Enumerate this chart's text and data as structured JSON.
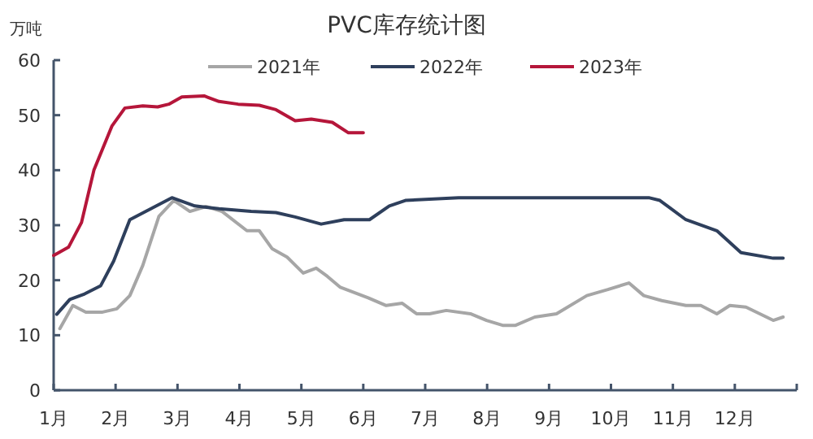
{
  "chart_data": {
    "type": "line",
    "title": "PVC库存统计图",
    "ylabel": "万吨",
    "ylim": [
      0,
      60
    ],
    "yticks": [
      0,
      10,
      20,
      30,
      40,
      50,
      60
    ],
    "xlim": [
      1,
      13
    ],
    "xticks": [
      {
        "value": 1,
        "label": "1月"
      },
      {
        "value": 2,
        "label": "2月"
      },
      {
        "value": 3,
        "label": "3月"
      },
      {
        "value": 4,
        "label": "4月"
      },
      {
        "value": 5,
        "label": "5月"
      },
      {
        "value": 6,
        "label": "6月"
      },
      {
        "value": 7,
        "label": "7月"
      },
      {
        "value": 8,
        "label": "8月"
      },
      {
        "value": 9,
        "label": "9月"
      },
      {
        "value": 10,
        "label": "10月"
      },
      {
        "value": 11,
        "label": "11月"
      },
      {
        "value": 12,
        "label": "12月"
      },
      {
        "value": 13,
        "label": null
      }
    ],
    "legend": "top",
    "grid": false,
    "marker": "none",
    "line_style": "solid",
    "series": [
      {
        "name": "2021年",
        "color": "#a6a6a6",
        "x": [
          1.1,
          1.31,
          1.52,
          1.79,
          2.02,
          2.23,
          2.44,
          2.7,
          2.94,
          3.2,
          3.46,
          3.72,
          4.12,
          4.32,
          4.53,
          4.77,
          5.03,
          5.24,
          5.42,
          5.63,
          6.08,
          6.37,
          6.63,
          6.68,
          6.86,
          7.07,
          7.34,
          7.73,
          7.99,
          8.25,
          8.46,
          8.77,
          9.12,
          9.61,
          9.95,
          10.29,
          10.53,
          10.82,
          11.21,
          11.45,
          11.71,
          11.92,
          12.18,
          12.62,
          12.78
        ],
        "values": [
          11.2,
          15.4,
          14.2,
          14.2,
          14.8,
          17.2,
          22.7,
          31.6,
          34.5,
          32.5,
          33.4,
          32.5,
          29,
          29,
          25.7,
          24.2,
          21.3,
          22.2,
          20.7,
          18.7,
          16.8,
          15.4,
          15.8,
          15.4,
          13.9,
          13.9,
          14.5,
          13.9,
          12.7,
          11.8,
          11.8,
          13.3,
          13.9,
          17.2,
          18.3,
          19.5,
          17.2,
          16.3,
          15.4,
          15.4,
          13.9,
          15.4,
          15.1,
          12.7,
          13.3
        ]
      },
      {
        "name": "2022年",
        "color": "#2e3f5c",
        "x": [
          1.05,
          1.26,
          1.5,
          1.76,
          1.97,
          2.23,
          2.57,
          2.91,
          3.28,
          3.67,
          4.19,
          4.59,
          4.9,
          5.32,
          5.69,
          6.1,
          6.42,
          6.68,
          7.54,
          8.85,
          10.61,
          10.79,
          11.21,
          11.71,
          12.1,
          12.62,
          12.78
        ],
        "values": [
          13.8,
          16.5,
          17.5,
          19,
          23.5,
          31,
          33,
          35,
          33.5,
          33,
          32.5,
          32.3,
          31.5,
          30.2,
          31,
          31,
          33.5,
          34.5,
          35,
          35,
          35,
          34.5,
          31,
          29,
          25,
          24,
          24
        ]
      },
      {
        "name": "2023年",
        "color": "#b5163a",
        "x": [
          1.0,
          1.24,
          1.45,
          1.65,
          1.94,
          2.15,
          2.44,
          2.68,
          2.86,
          3.07,
          3.43,
          3.67,
          3.98,
          4.32,
          4.59,
          4.9,
          5.16,
          5.5,
          5.76,
          6.0
        ],
        "values": [
          24.5,
          26,
          30.5,
          40,
          48,
          51.3,
          51.7,
          51.5,
          52,
          53.3,
          53.5,
          52.5,
          52,
          51.8,
          51,
          49,
          49.3,
          48.7,
          46.8,
          46.8
        ]
      }
    ]
  }
}
